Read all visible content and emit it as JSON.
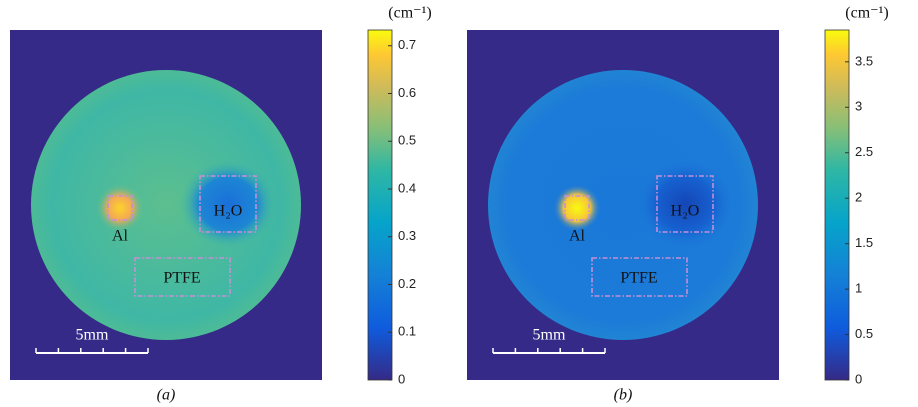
{
  "chart_data": [
    {
      "type": "heatmap",
      "unit": "(cm⁻¹)",
      "clim": [
        0,
        0.733
      ],
      "cticks": [
        0,
        0.1,
        0.2,
        0.3,
        0.4,
        0.5,
        0.6,
        0.7
      ],
      "regions": [
        "Al",
        "H₂O",
        "PTFE"
      ],
      "scale_bar": "5mm",
      "caption": "(a)"
    },
    {
      "type": "heatmap",
      "unit": "(cm⁻¹)",
      "clim": [
        0,
        3.85
      ],
      "cticks": [
        0,
        0.5,
        1,
        1.5,
        2,
        2.5,
        3,
        3.5
      ],
      "regions": [
        "Al",
        "H₂O",
        "PTFE"
      ],
      "scale_bar": "5mm",
      "caption": "(b)"
    }
  ]
}
